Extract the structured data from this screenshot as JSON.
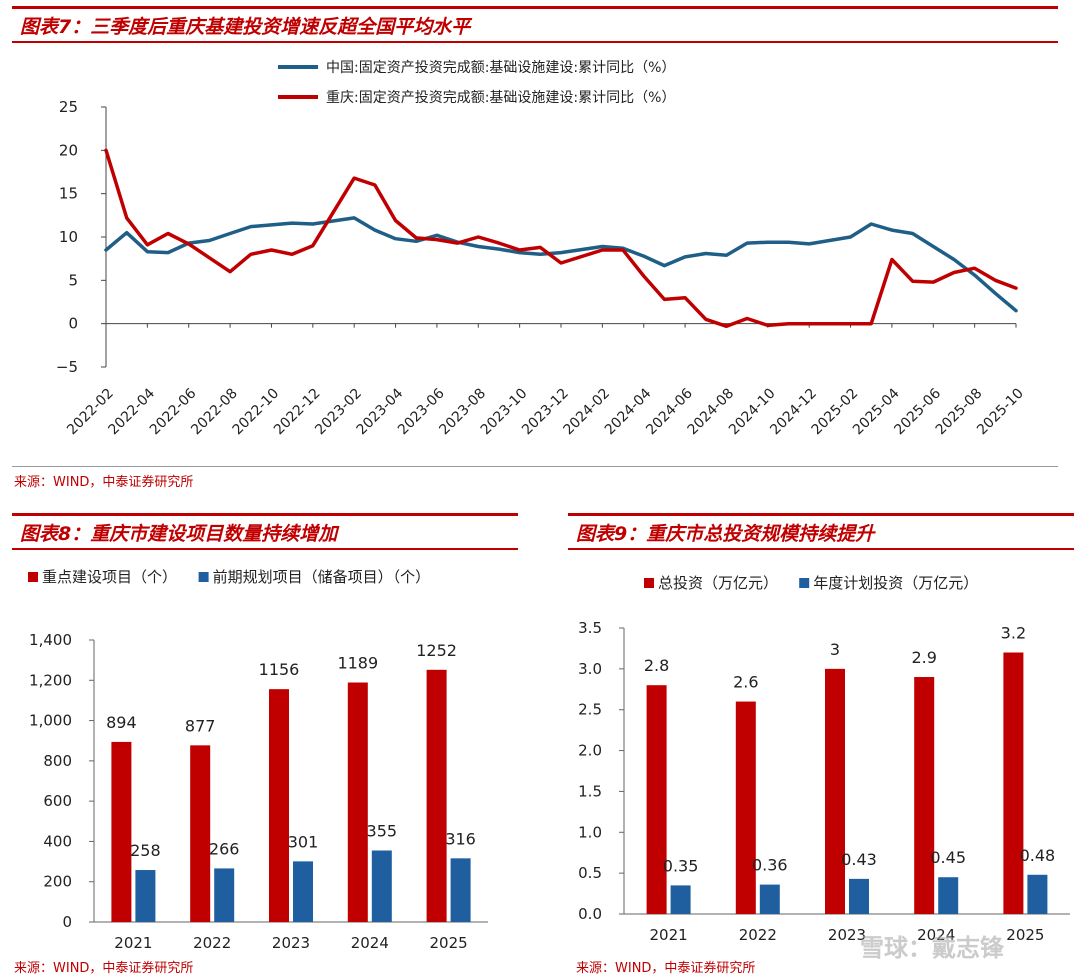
{
  "colors": {
    "red": "#c00000",
    "blue": "#1f5f87",
    "bar_red": "#c00000",
    "bar_blue": "#1f5fa0",
    "axis": "#444444",
    "text": "#222222"
  },
  "fig7": {
    "title": "图表7：三季度后重庆基建投资增速反超全国平均水平",
    "source": "来源：WIND，中泰证券研究所"
  },
  "fig8": {
    "title": "图表8：重庆市建设项目数量持续增加",
    "source": "来源：WIND，中泰证券研究所"
  },
  "fig9": {
    "title": "图表9：重庆市总投资规模持续提升",
    "source": "来源：WIND，中泰证券研究所"
  },
  "watermark": "雪球：戴志锋",
  "chart_data": [
    {
      "id": "fig7",
      "type": "line",
      "title": "三季度后重庆基建投资增速反超全国平均水平",
      "ylim": [
        -5,
        25
      ],
      "yticks": [
        -5,
        0,
        5,
        10,
        15,
        20,
        25
      ],
      "x": [
        "2022-02",
        "2022-03",
        "2022-04",
        "2022-05",
        "2022-06",
        "2022-07",
        "2022-08",
        "2022-09",
        "2022-10",
        "2022-11",
        "2022-12",
        "2023-01",
        "2023-02",
        "2023-03",
        "2023-04",
        "2023-05",
        "2023-06",
        "2023-07",
        "2023-08",
        "2023-09",
        "2023-10",
        "2023-11",
        "2023-12",
        "2024-01",
        "2024-02",
        "2024-03",
        "2024-04",
        "2024-05",
        "2024-06",
        "2024-07",
        "2024-08",
        "2024-09",
        "2024-10",
        "2024-11",
        "2024-12",
        "2025-01",
        "2025-02",
        "2025-03",
        "2025-04",
        "2025-05",
        "2025-06",
        "2025-07",
        "2025-08",
        "2025-09",
        "2025-10"
      ],
      "xticks": [
        "2022-02",
        "2022-04",
        "2022-06",
        "2022-08",
        "2022-10",
        "2022-12",
        "2023-02",
        "2023-04",
        "2023-06",
        "2023-08",
        "2023-10",
        "2023-12",
        "2024-02",
        "2024-04",
        "2024-06",
        "2024-08",
        "2024-10",
        "2024-12",
        "2025-02",
        "2025-04",
        "2025-06",
        "2025-08",
        "2025-10"
      ],
      "series": [
        {
          "name": "中国:固定资产投资完成额:基础设施建设:累计同比（%）",
          "color": "#1f5f87",
          "values": [
            8.5,
            10.5,
            8.3,
            8.2,
            9.3,
            9.6,
            10.4,
            11.2,
            11.4,
            11.6,
            11.5,
            null,
            12.2,
            10.8,
            9.8,
            9.5,
            10.2,
            9.4,
            8.9,
            8.6,
            8.2,
            8.0,
            8.2,
            null,
            8.9,
            8.7,
            7.8,
            6.7,
            7.7,
            8.1,
            7.9,
            9.3,
            9.4,
            9.4,
            9.2,
            null,
            10.0,
            11.5,
            10.8,
            10.4,
            8.9,
            7.4,
            5.6,
            3.5,
            1.5
          ]
        },
        {
          "name": "重庆:固定资产投资完成额:基础设施建设:累计同比（%）",
          "color": "#c00000",
          "values": [
            20.0,
            12.2,
            9.1,
            10.4,
            9.2,
            7.6,
            6.0,
            8.0,
            8.5,
            8.0,
            9.0,
            null,
            16.8,
            16.0,
            11.9,
            9.9,
            9.7,
            9.3,
            10.0,
            9.3,
            8.5,
            8.8,
            7.0,
            null,
            8.5,
            8.5,
            5.5,
            2.8,
            3.0,
            0.5,
            -0.3,
            0.6,
            -0.2,
            0.0,
            0.0,
            null,
            0.0,
            0.0,
            7.4,
            4.9,
            4.8,
            5.9,
            6.4,
            5.0,
            4.1
          ]
        }
      ]
    },
    {
      "id": "fig8",
      "type": "bar",
      "title": "重庆市建设项目数量持续增加",
      "categories": [
        "2021",
        "2022",
        "2023",
        "2024",
        "2025"
      ],
      "ylim": [
        0,
        1400
      ],
      "yticks": [
        0,
        200,
        400,
        600,
        800,
        1000,
        1200,
        1400
      ],
      "ytick_labels": [
        "0",
        "200",
        "400",
        "600",
        "800",
        "1,000",
        "1,200",
        "1,400"
      ],
      "series": [
        {
          "name": "重点建设项目（个）",
          "color": "#c00000",
          "values": [
            894,
            877,
            1156,
            1189,
            1252
          ],
          "labels": [
            "894",
            "877",
            "1156",
            "1189",
            "1252"
          ]
        },
        {
          "name": "前期规划项目（储备项目）（个）",
          "color": "#1f5fa0",
          "values": [
            258,
            266,
            301,
            355,
            316
          ],
          "labels": [
            "258",
            "266",
            "301",
            "355",
            "316"
          ]
        }
      ]
    },
    {
      "id": "fig9",
      "type": "bar",
      "title": "重庆市总投资规模持续提升",
      "categories": [
        "2021",
        "2022",
        "2023",
        "2024",
        "2025"
      ],
      "ylim": [
        0,
        3.5
      ],
      "yticks": [
        0,
        0.5,
        1.0,
        1.5,
        2.0,
        2.5,
        3.0,
        3.5
      ],
      "ytick_labels": [
        "0.0",
        "0.5",
        "1.0",
        "1.5",
        "2.0",
        "2.5",
        "3.0",
        "3.5"
      ],
      "series": [
        {
          "name": "总投资（万亿元）",
          "color": "#c00000",
          "values": [
            2.8,
            2.6,
            3.0,
            2.9,
            3.2
          ],
          "labels": [
            "2.8",
            "2.6",
            "3",
            "2.9",
            "3.2"
          ]
        },
        {
          "name": "年度计划投资（万亿元）",
          "color": "#1f5fa0",
          "values": [
            0.35,
            0.36,
            0.43,
            0.45,
            0.48
          ],
          "labels": [
            "0.35",
            "0.36",
            "0.43",
            "0.45",
            "0.48"
          ]
        }
      ]
    }
  ]
}
